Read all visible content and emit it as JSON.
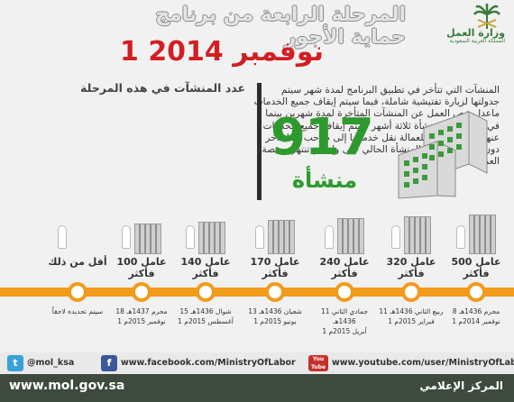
{
  "header": {
    "title": "المرحلة الرابعة من برنامج حماية الأجور",
    "logo_title": "وزارة العمل",
    "logo_subtitle": "المملكة العربية السعودية",
    "date": "1 نوفمبر 2014"
  },
  "main": {
    "paragraph": "المنشآت التي تتأخر في تطبيق البرنامج لمدة شهر سيتم جدولتها لزيارة تفتيشية شاملة، فيما سيتم إيقاف جميع الخدمات ماعدا رخص العمل عن المنشآت المتأخرة لمدة شهرين بينما في حالة تأخر المنشأة ثلاثة أشهر سيتم إيقاف جميع الخدمات عنها وكذلك يسمح للعمالة نقل خدماتها إلى صاحب عمل آخر دون موافقة صاحب المنشأة الحالي حتى وإن لم تنتهي رخصة العمل.",
    "count_heading": "عدد المنشآت في هذه المرحلة",
    "count_number": "917",
    "count_unit": "منشأة"
  },
  "timeline": {
    "stages": [
      {
        "label": "500 عامل فأكثر",
        "date": "8 محرم 1436هـ\n1 نوفمبر 2014م"
      },
      {
        "label": "320 عامل فأكثر",
        "date": "11 ربيع الثاني 1436هـ\n1 فبراير 2015م"
      },
      {
        "label": "240 عامل فأكثر",
        "date": "11 جمادي الثاني 1436هـ\n1 أبريل 2015م"
      },
      {
        "label": "170 عامل فأكثر",
        "date": "13 شعبان 1436هـ\n1 يونيو 2015م"
      },
      {
        "label": "140 عامل فأكثر",
        "date": "15 شوال 1436هـ\n1 أغسطس 2015م"
      },
      {
        "label": "100 عامل فأكثر",
        "date": "18 محرم 1437هـ\n1 نوفمبر 2015م"
      },
      {
        "label": "أقل من ذلك",
        "date": "سيتم تحديده لاحقاً"
      }
    ]
  },
  "footer": {
    "twitter": "@mol_ksa",
    "facebook": "www.facebook.com/MinistryOfLabor",
    "youtube": "www.youtube.com/user/MinistryOfLabor",
    "youtube_badge": "You Tube",
    "website": "www.mol.gov.sa",
    "center": "المركز الإعلامي"
  },
  "colors": {
    "accent": "#2e9a2e",
    "date_red": "#d21f23",
    "timeline": "#f29a1b",
    "footer": "#3f4a3f"
  }
}
